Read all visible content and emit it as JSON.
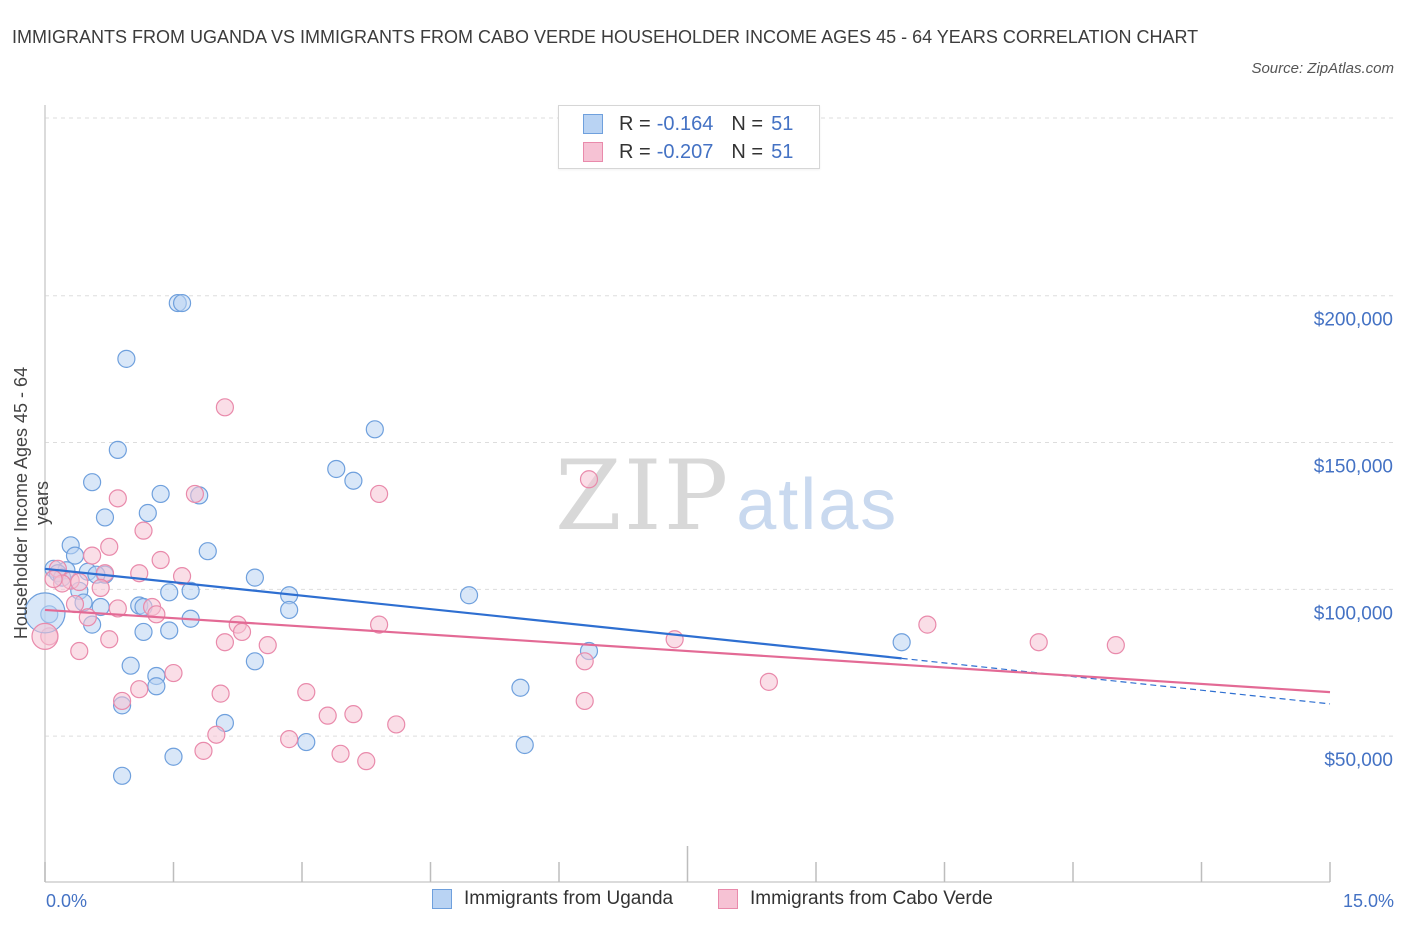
{
  "title": "IMMIGRANTS FROM UGANDA VS IMMIGRANTS FROM CABO VERDE HOUSEHOLDER INCOME AGES 45 - 64 YEARS CORRELATION CHART",
  "source": "Source: ZipAtlas.com",
  "watermark": {
    "zip": "ZIP",
    "atlas": "atlas"
  },
  "legend": {
    "rows": [
      {
        "r_label": "R =",
        "r_value": "-0.164",
        "n_label": "N =",
        "n_value": "51"
      },
      {
        "r_label": "R =",
        "r_value": "-0.207",
        "n_label": "N =",
        "n_value": "51"
      }
    ]
  },
  "bottom_legend": [
    "Immigrants from Uganda",
    "Immigrants from Cabo Verde"
  ],
  "colors": {
    "uganda": "#6fa0dd",
    "uganda_fill": "#b9d3f3",
    "uganda_line": "#2e6fd1",
    "caboverde": "#e98aab",
    "caboverde_fill": "#f6c2d4",
    "caboverde_line": "#e36a95",
    "tick_text": "#4472c4",
    "grid": "#dddddd"
  },
  "chart_data": {
    "type": "scatter",
    "title": "IMMIGRANTS FROM UGANDA VS IMMIGRANTS FROM CABO VERDE HOUSEHOLDER INCOME AGES 45 - 64 YEARS CORRELATION CHART",
    "xlabel": "",
    "ylabel": "Householder Income Ages 45 - 64 years",
    "xlim": [
      0,
      15
    ],
    "ylim": [
      0,
      200000
    ],
    "x_tick_labels": [
      "0.0%",
      "15.0%"
    ],
    "y_ticks": [
      50000,
      100000,
      150000,
      200000
    ],
    "y_tick_labels": [
      "$50,000",
      "$100,000",
      "$150,000",
      "$200,000"
    ],
    "grid": true,
    "legend_position": "top-center",
    "series": [
      {
        "name": "Immigrants from Uganda",
        "r": -0.164,
        "n": 51,
        "trend": {
          "x0": 0,
          "y0": 107000,
          "x1": 10.0,
          "y1": 76500,
          "dashed_to_x": 15,
          "dashed_to_y": 61000
        },
        "points": [
          [
            1.55,
            197500
          ],
          [
            1.6,
            197500
          ],
          [
            0.95,
            178500
          ],
          [
            3.85,
            154500
          ],
          [
            0.85,
            147500
          ],
          [
            3.4,
            141000
          ],
          [
            0.55,
            136500
          ],
          [
            3.6,
            137000
          ],
          [
            1.35,
            132500
          ],
          [
            1.8,
            132000
          ],
          [
            1.2,
            126000
          ],
          [
            0.7,
            124500
          ],
          [
            0.3,
            115000
          ],
          [
            1.9,
            113000
          ],
          [
            0.35,
            111500
          ],
          [
            0.1,
            107000
          ],
          [
            0.25,
            106500
          ],
          [
            0.5,
            106000
          ],
          [
            0.15,
            105500
          ],
          [
            0.7,
            105000
          ],
          [
            2.45,
            104000
          ],
          [
            0.4,
            99500
          ],
          [
            1.45,
            99000
          ],
          [
            1.7,
            99500
          ],
          [
            2.85,
            98000
          ],
          [
            4.95,
            98000
          ],
          [
            0.45,
            95500
          ],
          [
            0.65,
            94000
          ],
          [
            1.1,
            94500
          ],
          [
            1.15,
            94000
          ],
          [
            2.85,
            93000
          ],
          [
            0.05,
            91500
          ],
          [
            1.7,
            90000
          ],
          [
            0.55,
            88000
          ],
          [
            1.15,
            85500
          ],
          [
            1.45,
            86000
          ],
          [
            10.0,
            82000
          ],
          [
            6.35,
            79000
          ],
          [
            2.45,
            75500
          ],
          [
            1.0,
            74000
          ],
          [
            1.3,
            70500
          ],
          [
            1.3,
            67000
          ],
          [
            5.55,
            66500
          ],
          [
            0.9,
            60500
          ],
          [
            2.1,
            54500
          ],
          [
            3.05,
            48000
          ],
          [
            5.6,
            47000
          ],
          [
            1.5,
            43000
          ],
          [
            0.9,
            36500
          ],
          [
            0.2,
            104000
          ],
          [
            0.6,
            105000
          ]
        ]
      },
      {
        "name": "Immigrants from Cabo Verde",
        "r": -0.207,
        "n": 51,
        "trend": {
          "x0": 0,
          "y0": 93000,
          "x1": 15,
          "y1": 65000
        },
        "points": [
          [
            2.1,
            162000
          ],
          [
            6.35,
            137500
          ],
          [
            1.75,
            132500
          ],
          [
            3.9,
            132500
          ],
          [
            0.85,
            131000
          ],
          [
            1.15,
            120000
          ],
          [
            0.75,
            114500
          ],
          [
            0.55,
            111500
          ],
          [
            1.35,
            110000
          ],
          [
            0.15,
            107000
          ],
          [
            1.1,
            105500
          ],
          [
            0.7,
            105500
          ],
          [
            1.6,
            104500
          ],
          [
            0.3,
            103000
          ],
          [
            0.2,
            102000
          ],
          [
            0.4,
            102500
          ],
          [
            0.65,
            100500
          ],
          [
            0.35,
            95000
          ],
          [
            1.25,
            94000
          ],
          [
            1.3,
            91500
          ],
          [
            0.5,
            90500
          ],
          [
            2.25,
            88000
          ],
          [
            3.9,
            88000
          ],
          [
            10.3,
            88000
          ],
          [
            0.05,
            84000
          ],
          [
            2.3,
            85500
          ],
          [
            7.35,
            83000
          ],
          [
            2.1,
            82000
          ],
          [
            2.6,
            81000
          ],
          [
            11.6,
            82000
          ],
          [
            12.5,
            81000
          ],
          [
            0.75,
            83000
          ],
          [
            0.4,
            79000
          ],
          [
            6.3,
            75500
          ],
          [
            1.5,
            71500
          ],
          [
            8.45,
            68500
          ],
          [
            1.1,
            66000
          ],
          [
            2.05,
            64500
          ],
          [
            3.05,
            65000
          ],
          [
            0.9,
            62000
          ],
          [
            6.3,
            62000
          ],
          [
            3.6,
            57500
          ],
          [
            3.3,
            57000
          ],
          [
            4.1,
            54000
          ],
          [
            2.0,
            50500
          ],
          [
            2.85,
            49000
          ],
          [
            1.85,
            45000
          ],
          [
            3.45,
            44000
          ],
          [
            3.75,
            41500
          ],
          [
            0.1,
            103500
          ],
          [
            0.85,
            93500
          ]
        ]
      }
    ]
  }
}
